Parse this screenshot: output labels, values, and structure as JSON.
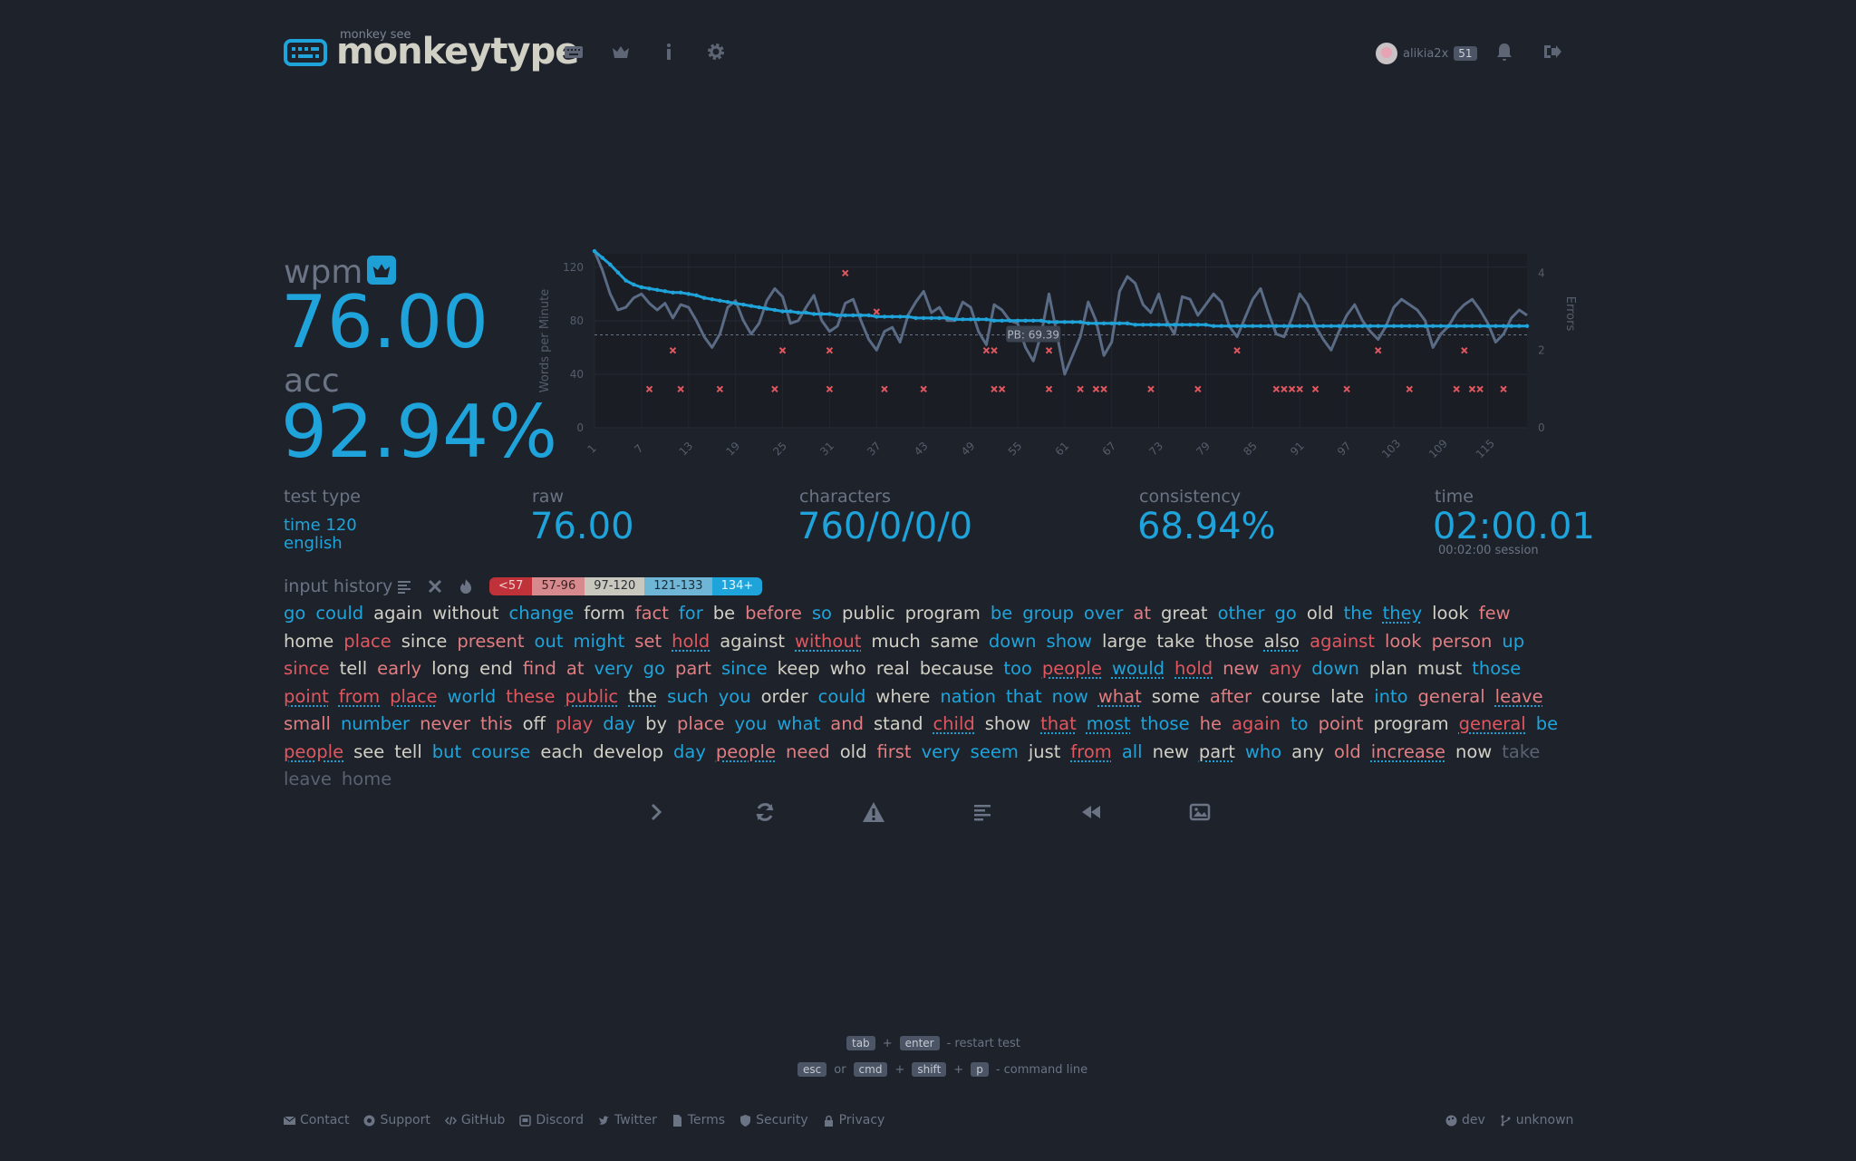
{
  "header": {
    "brand_small": "monkey see",
    "brand": "monkeytype",
    "user": {
      "name": "alikia2x",
      "level": "51"
    },
    "nav": [
      "keyboard-icon",
      "crown-icon",
      "info-icon",
      "gear-icon"
    ],
    "right_icons": [
      "bell-icon",
      "logout-icon"
    ]
  },
  "result": {
    "wpm_label": "wpm",
    "wpm": "76.00",
    "acc_label": "acc",
    "acc": "92.94%"
  },
  "stats": {
    "test_type_label": "test type",
    "test_type_line1": "time 120",
    "test_type_line2": "english",
    "raw_label": "raw",
    "raw": "76.00",
    "characters_label": "characters",
    "characters": "760/0/0/0",
    "consistency_label": "consistency",
    "consistency": "68.94%",
    "time_label": "time",
    "time": "02:00.01",
    "session": "00:02:00 session"
  },
  "chart_data": {
    "type": "line",
    "ylabel": "Words per Minute",
    "y2label": "Errors",
    "ylim": [
      0,
      130
    ],
    "y2lim": [
      0,
      4.5
    ],
    "yticks": [
      "0",
      "40",
      "80",
      "120"
    ],
    "y2ticks": [
      "0",
      "2",
      "4"
    ],
    "xticks": [
      "1",
      "7",
      "13",
      "19",
      "25",
      "31",
      "37",
      "43",
      "49",
      "55",
      "61",
      "67",
      "73",
      "79",
      "85",
      "91",
      "97",
      "103",
      "109",
      "115"
    ],
    "pb_label": "PB: 69.39",
    "pb_value": 69.39,
    "series": [
      {
        "name": "wpm",
        "color": "#1ea4db",
        "values": [
          132,
          127,
          122,
          116,
          110,
          107,
          105,
          104,
          103,
          102,
          101,
          101,
          100,
          99,
          97,
          96,
          95,
          94,
          93,
          92,
          91,
          90,
          89,
          88,
          87,
          87,
          86,
          86,
          85,
          85,
          85,
          84,
          84,
          84,
          84,
          84,
          83,
          83,
          83,
          83,
          83,
          82,
          82,
          82,
          82,
          82,
          81,
          81,
          81,
          81,
          81,
          80,
          80,
          80,
          80,
          80,
          80,
          80,
          79,
          79,
          79,
          79,
          79,
          78,
          78,
          78,
          78,
          78,
          78,
          77,
          77,
          77,
          77,
          77,
          77,
          77,
          77,
          77,
          77,
          76,
          76,
          76,
          76,
          76,
          76,
          76,
          76,
          76,
          76,
          76,
          76,
          76,
          76,
          76,
          76,
          76,
          76,
          76,
          76,
          76,
          76,
          76,
          76,
          76,
          76,
          76,
          76,
          76,
          76,
          76,
          76,
          76,
          76,
          76,
          76,
          76,
          76,
          76,
          76,
          76
        ]
      },
      {
        "name": "raw",
        "color": "#5a6b85",
        "values": [
          132,
          118,
          100,
          88,
          90,
          97,
          100,
          93,
          88,
          93,
          82,
          92,
          90,
          80,
          68,
          60,
          70,
          90,
          95,
          80,
          70,
          78,
          95,
          104,
          98,
          78,
          80,
          90,
          99,
          80,
          72,
          76,
          93,
          96,
          80,
          66,
          58,
          72,
          75,
          64,
          84,
          94,
          102,
          86,
          90,
          80,
          80,
          94,
          90,
          72,
          62,
          92,
          88,
          80,
          78,
          60,
          50,
          70,
          100,
          70,
          40,
          54,
          68,
          94,
          80,
          54,
          64,
          102,
          113,
          108,
          92,
          86,
          100,
          80,
          70,
          98,
          96,
          84,
          92,
          100,
          94,
          76,
          68,
          82,
          96,
          104,
          86,
          70,
          68,
          82,
          100,
          92,
          76,
          66,
          58,
          72,
          84,
          92,
          80,
          72,
          66,
          76,
          90,
          96,
          92,
          88,
          80,
          60,
          70,
          76,
          86,
          92,
          96,
          88,
          78,
          64,
          70,
          82,
          88,
          84
        ]
      },
      {
        "name": "errors",
        "color": "#e0575f",
        "points": [
          [
            8,
            1
          ],
          [
            12,
            1
          ],
          [
            17,
            1
          ],
          [
            24,
            1
          ],
          [
            31,
            1
          ],
          [
            38,
            1
          ],
          [
            43,
            1
          ],
          [
            52,
            1
          ],
          [
            53,
            1
          ],
          [
            59,
            1
          ],
          [
            63,
            1
          ],
          [
            65,
            1
          ],
          [
            66,
            1
          ],
          [
            72,
            1
          ],
          [
            78,
            1
          ],
          [
            88,
            1
          ],
          [
            89,
            1
          ],
          [
            90,
            1
          ],
          [
            91,
            1
          ],
          [
            93,
            1
          ],
          [
            97,
            1
          ],
          [
            105,
            1
          ],
          [
            111,
            1
          ],
          [
            113,
            1
          ],
          [
            114,
            1
          ],
          [
            117,
            1
          ],
          [
            11,
            2
          ],
          [
            25,
            2
          ],
          [
            31,
            2
          ],
          [
            51,
            2
          ],
          [
            52,
            2
          ],
          [
            59,
            2
          ],
          [
            83,
            2
          ],
          [
            101,
            2
          ],
          [
            112,
            2
          ],
          [
            37,
            3
          ],
          [
            33,
            4
          ]
        ]
      }
    ]
  },
  "input_history": {
    "label": "input history",
    "legend": [
      {
        "label": "<57",
        "bg": "#c0323a",
        "fg": "#f0d0d0"
      },
      {
        "label": "57-96",
        "bg": "#d68a8e",
        "fg": "#3a2020"
      },
      {
        "label": "97-120",
        "bg": "#c8c8bf",
        "fg": "#2b2f36"
      },
      {
        "label": "121-133",
        "bg": "#6fb6d6",
        "fg": "#1e2a36"
      },
      {
        "label": "134+",
        "bg": "#1ea4db",
        "fg": "#e8f6fc"
      }
    ],
    "words": [
      {
        "t": "go",
        "s": "b"
      },
      {
        "t": "could",
        "s": "b"
      },
      {
        "t": "again",
        "s": "c"
      },
      {
        "t": "without",
        "s": "c"
      },
      {
        "t": "change",
        "s": "b"
      },
      {
        "t": "form",
        "s": "c"
      },
      {
        "t": "fact",
        "s": "p"
      },
      {
        "t": "for",
        "s": "b"
      },
      {
        "t": "be",
        "s": "c"
      },
      {
        "t": "before",
        "s": "p"
      },
      {
        "t": "so",
        "s": "b"
      },
      {
        "t": "public",
        "s": "c"
      },
      {
        "t": "program",
        "s": "c"
      },
      {
        "t": "be",
        "s": "b"
      },
      {
        "t": "group",
        "s": "b"
      },
      {
        "t": "over",
        "s": "b"
      },
      {
        "t": "at",
        "s": "p"
      },
      {
        "t": "great",
        "s": "c"
      },
      {
        "t": "other",
        "s": "b"
      },
      {
        "t": "go",
        "s": "b"
      },
      {
        "t": "old",
        "s": "c"
      },
      {
        "t": "the",
        "s": "b"
      },
      {
        "t": "they",
        "s": "b",
        "u": true
      },
      {
        "t": "look",
        "s": "c"
      },
      {
        "t": "few",
        "s": "p"
      },
      {
        "t": "home",
        "s": "c"
      },
      {
        "t": "place",
        "s": "r"
      },
      {
        "t": "since",
        "s": "c"
      },
      {
        "t": "present",
        "s": "p"
      },
      {
        "t": "out",
        "s": "b"
      },
      {
        "t": "might",
        "s": "b"
      },
      {
        "t": "set",
        "s": "p"
      },
      {
        "t": "hold",
        "s": "r",
        "u": true
      },
      {
        "t": "against",
        "s": "c"
      },
      {
        "t": "without",
        "s": "r",
        "u": true
      },
      {
        "t": "much",
        "s": "c"
      },
      {
        "t": "same",
        "s": "c"
      },
      {
        "t": "down",
        "s": "b"
      },
      {
        "t": "show",
        "s": "b"
      },
      {
        "t": "large",
        "s": "c"
      },
      {
        "t": "take",
        "s": "c"
      },
      {
        "t": "those",
        "s": "c"
      },
      {
        "t": "also",
        "s": "c",
        "u": true
      },
      {
        "t": "against",
        "s": "r"
      },
      {
        "t": "look",
        "s": "p"
      },
      {
        "t": "person",
        "s": "p"
      },
      {
        "t": "up",
        "s": "b"
      },
      {
        "t": "since",
        "s": "r"
      },
      {
        "t": "tell",
        "s": "c"
      },
      {
        "t": "early",
        "s": "p"
      },
      {
        "t": "long",
        "s": "c"
      },
      {
        "t": "end",
        "s": "c"
      },
      {
        "t": "find",
        "s": "p"
      },
      {
        "t": "at",
        "s": "p"
      },
      {
        "t": "very",
        "s": "b"
      },
      {
        "t": "go",
        "s": "b"
      },
      {
        "t": "part",
        "s": "p"
      },
      {
        "t": "since",
        "s": "b"
      },
      {
        "t": "keep",
        "s": "c"
      },
      {
        "t": "who",
        "s": "c"
      },
      {
        "t": "real",
        "s": "c"
      },
      {
        "t": "because",
        "s": "c"
      },
      {
        "t": "too",
        "s": "b"
      },
      {
        "t": "people",
        "s": "r",
        "u": true
      },
      {
        "t": "would",
        "s": "b",
        "u": true
      },
      {
        "t": "hold",
        "s": "r",
        "u": true
      },
      {
        "t": "new",
        "s": "p"
      },
      {
        "t": "any",
        "s": "r"
      },
      {
        "t": "down",
        "s": "b"
      },
      {
        "t": "plan",
        "s": "c"
      },
      {
        "t": "must",
        "s": "c"
      },
      {
        "t": "those",
        "s": "b"
      },
      {
        "t": "point",
        "s": "r",
        "u": true
      },
      {
        "t": "from",
        "s": "r",
        "u": true
      },
      {
        "t": "place",
        "s": "r",
        "u": true
      },
      {
        "t": "world",
        "s": "b"
      },
      {
        "t": "these",
        "s": "r"
      },
      {
        "t": "public",
        "s": "r",
        "u": true
      },
      {
        "t": "the",
        "s": "c",
        "u": true
      },
      {
        "t": "such",
        "s": "b"
      },
      {
        "t": "you",
        "s": "b"
      },
      {
        "t": "order",
        "s": "c"
      },
      {
        "t": "could",
        "s": "b"
      },
      {
        "t": "where",
        "s": "c"
      },
      {
        "t": "nation",
        "s": "b"
      },
      {
        "t": "that",
        "s": "b"
      },
      {
        "t": "now",
        "s": "b"
      },
      {
        "t": "what",
        "s": "p",
        "u": true
      },
      {
        "t": "some",
        "s": "c"
      },
      {
        "t": "after",
        "s": "p"
      },
      {
        "t": "course",
        "s": "c"
      },
      {
        "t": "late",
        "s": "c"
      },
      {
        "t": "into",
        "s": "b"
      },
      {
        "t": "general",
        "s": "p"
      },
      {
        "t": "leave",
        "s": "p",
        "u": true
      },
      {
        "t": "small",
        "s": "p"
      },
      {
        "t": "number",
        "s": "b"
      },
      {
        "t": "never",
        "s": "p"
      },
      {
        "t": "this",
        "s": "p"
      },
      {
        "t": "off",
        "s": "c"
      },
      {
        "t": "play",
        "s": "r"
      },
      {
        "t": "day",
        "s": "b"
      },
      {
        "t": "by",
        "s": "c"
      },
      {
        "t": "place",
        "s": "p"
      },
      {
        "t": "you",
        "s": "b"
      },
      {
        "t": "what",
        "s": "b"
      },
      {
        "t": "and",
        "s": "p"
      },
      {
        "t": "stand",
        "s": "c"
      },
      {
        "t": "child",
        "s": "r",
        "u": true
      },
      {
        "t": "show",
        "s": "c"
      },
      {
        "t": "that",
        "s": "r",
        "u": true
      },
      {
        "t": "most",
        "s": "b",
        "u": true
      },
      {
        "t": "those",
        "s": "b"
      },
      {
        "t": "he",
        "s": "p"
      },
      {
        "t": "again",
        "s": "r"
      },
      {
        "t": "to",
        "s": "b"
      },
      {
        "t": "point",
        "s": "p"
      },
      {
        "t": "program",
        "s": "c"
      },
      {
        "t": "general",
        "s": "r",
        "u": true
      },
      {
        "t": "be",
        "s": "b"
      },
      {
        "t": "people",
        "s": "r",
        "u": true
      },
      {
        "t": "see",
        "s": "c"
      },
      {
        "t": "tell",
        "s": "c"
      },
      {
        "t": "but",
        "s": "b"
      },
      {
        "t": "course",
        "s": "b"
      },
      {
        "t": "each",
        "s": "c"
      },
      {
        "t": "develop",
        "s": "c"
      },
      {
        "t": "day",
        "s": "b"
      },
      {
        "t": "people",
        "s": "p",
        "u": true
      },
      {
        "t": "need",
        "s": "p"
      },
      {
        "t": "old",
        "s": "c"
      },
      {
        "t": "first",
        "s": "p"
      },
      {
        "t": "very",
        "s": "b"
      },
      {
        "t": "seem",
        "s": "b"
      },
      {
        "t": "just",
        "s": "c"
      },
      {
        "t": "from",
        "s": "r",
        "u": true
      },
      {
        "t": "all",
        "s": "b"
      },
      {
        "t": "new",
        "s": "c"
      },
      {
        "t": "part",
        "s": "c",
        "u": true
      },
      {
        "t": "who",
        "s": "b"
      },
      {
        "t": "any",
        "s": "c"
      },
      {
        "t": "old",
        "s": "p"
      },
      {
        "t": "increase",
        "s": "p",
        "u": true
      },
      {
        "t": "now",
        "s": "c"
      },
      {
        "t": "take",
        "s": "g"
      },
      {
        "t": "leave",
        "s": "g"
      },
      {
        "t": "home",
        "s": "g"
      }
    ]
  },
  "actions": [
    "next-test-icon",
    "restart-icon",
    "report-icon",
    "words-history-icon",
    "replay-icon",
    "screenshot-icon"
  ],
  "hints": {
    "restart": {
      "keys": [
        "tab",
        "enter"
      ],
      "sep": "+",
      "text": "- restart test"
    },
    "command": {
      "keys": [
        "esc",
        "cmd",
        "shift",
        "p"
      ],
      "or": "or",
      "sep": "+",
      "text": "- command line"
    }
  },
  "footer": {
    "links": [
      "Contact",
      "Support",
      "GitHub",
      "Discord",
      "Twitter",
      "Terms",
      "Security",
      "Privacy"
    ],
    "theme": "dev",
    "version": "unknown"
  }
}
